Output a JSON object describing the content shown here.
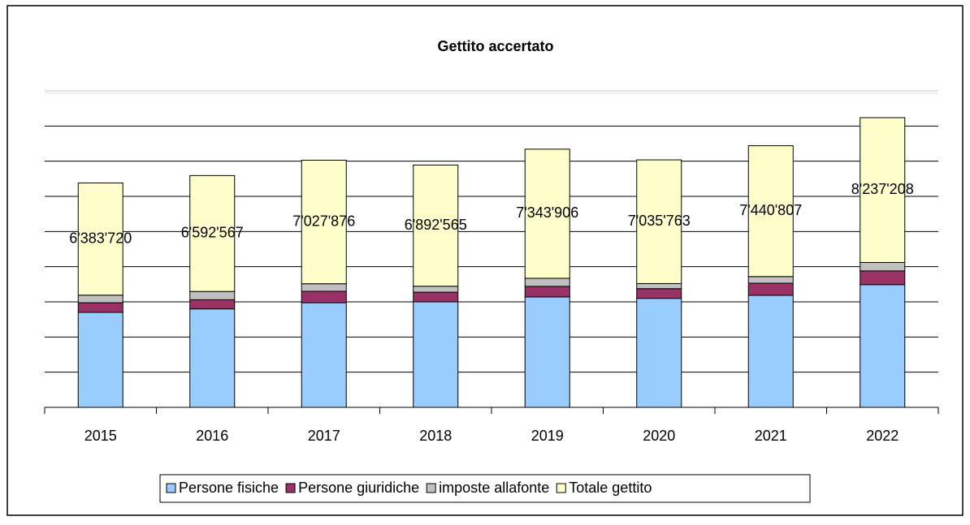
{
  "chart_data": {
    "type": "stacked-bar",
    "title": "Gettito accertato",
    "categories": [
      "2015",
      "2016",
      "2017",
      "2018",
      "2019",
      "2020",
      "2021",
      "2022"
    ],
    "series": [
      {
        "name": "Persone fisiche",
        "color": "#99ccff",
        "values": [
          5400000,
          5600000,
          5950000,
          6000000,
          6280000,
          6200000,
          6370000,
          6980000
        ]
      },
      {
        "name": "Persone giuridiche",
        "color": "#993366",
        "values": [
          550000,
          520000,
          650000,
          550000,
          600000,
          550000,
          690000,
          780000
        ]
      },
      {
        "name": "imposte allafonte",
        "color": "#c0c0c0",
        "values": [
          430000,
          470000,
          430000,
          340000,
          460000,
          290000,
          380000,
          480000
        ]
      },
      {
        "name": "Totale gettito",
        "color": "#ffffcc",
        "values": [
          6383720,
          6592567,
          7027876,
          6892565,
          7343906,
          7035763,
          7440807,
          8237208
        ],
        "value_labels": [
          "6'383'720",
          "6'592'567",
          "7'027'876",
          "6'892'565",
          "7'343'906",
          "7'035'763",
          "7'440'807",
          "8'237'208"
        ]
      }
    ],
    "ylim": [
      0,
      18000000
    ],
    "yticks": [
      0,
      2000000,
      4000000,
      6000000,
      8000000,
      10000000,
      12000000,
      14000000,
      16000000
    ],
    "grid": true,
    "legend": "bottom"
  }
}
